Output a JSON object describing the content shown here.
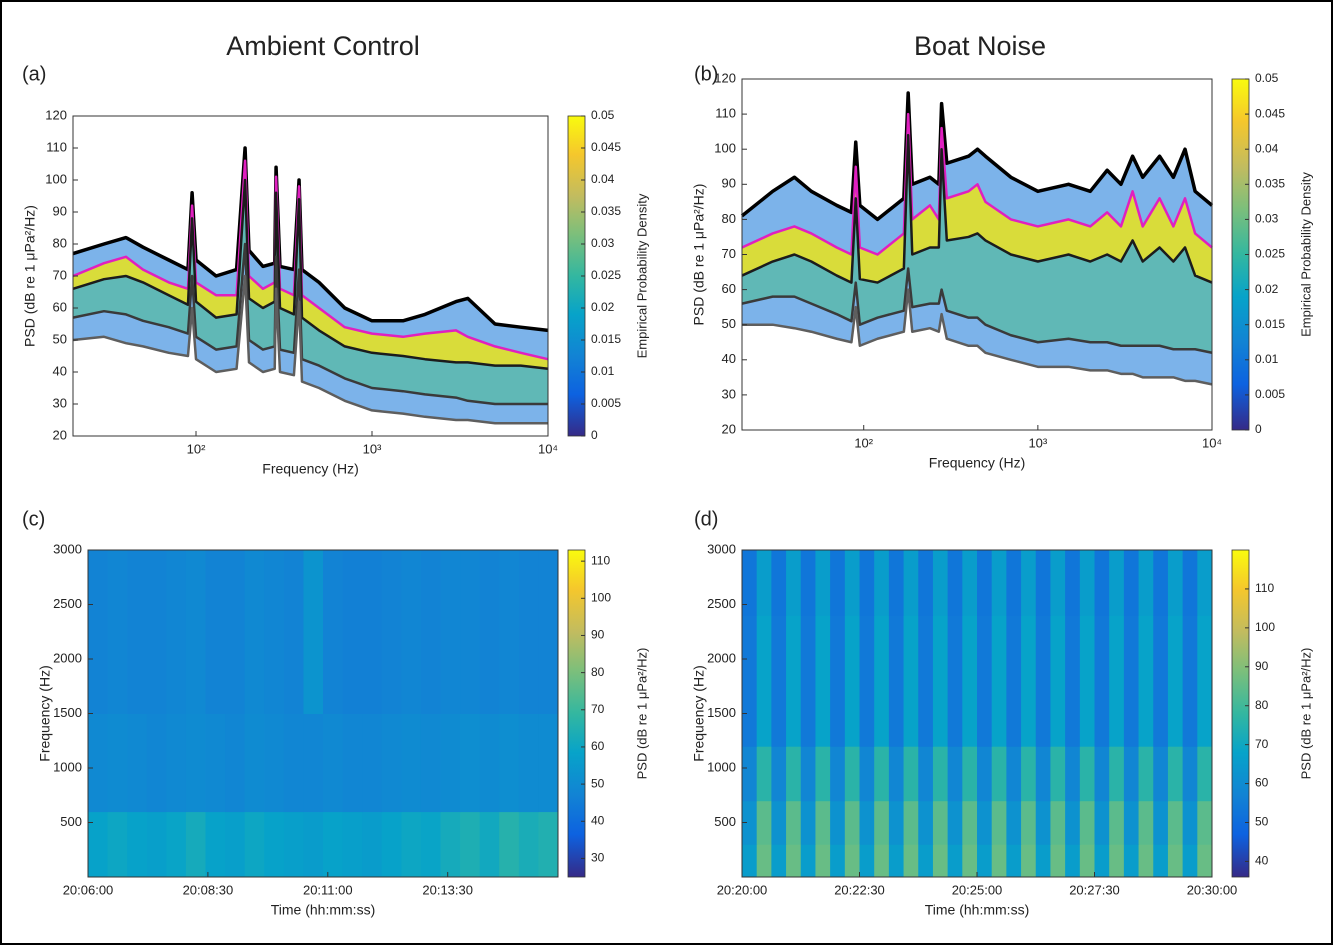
{
  "chart_data": [
    {
      "type": "line",
      "panel_label": "(a)",
      "title": "Ambient Control",
      "xlabel": "Frequency (Hz)",
      "ylabel": "PSD (dB re 1 μPa²/Hz)",
      "xscale": "log",
      "x": [
        20,
        30,
        40,
        50,
        70,
        90,
        95,
        100,
        130,
        170,
        190,
        200,
        240,
        280,
        285,
        300,
        360,
        385,
        400,
        500,
        700,
        1000,
        1500,
        2000,
        3000,
        3500,
        5000,
        7000,
        10000
      ],
      "xlim": [
        20,
        10000
      ],
      "xticks": [
        {
          "value": 100,
          "label": "10²"
        },
        {
          "value": 1000,
          "label": "10³"
        },
        {
          "value": 10000,
          "label": "10⁴"
        }
      ],
      "ylim": [
        20,
        120
      ],
      "yticks": [
        20,
        30,
        40,
        50,
        60,
        70,
        80,
        90,
        100,
        110,
        120
      ],
      "series": [
        {
          "color": "#000000",
          "values": [
            77,
            80,
            82,
            79,
            75,
            72,
            96,
            75,
            70,
            72,
            110,
            78,
            73,
            74,
            104,
            73,
            72,
            100,
            72,
            68,
            60,
            56,
            56,
            58,
            62,
            63,
            55,
            54,
            53
          ]
        },
        {
          "color": "#e020c0",
          "values": [
            70,
            74,
            76,
            72,
            68,
            66,
            92,
            68,
            64,
            64,
            106,
            70,
            66,
            68,
            101,
            66,
            64,
            98,
            64,
            60,
            54,
            52,
            51,
            52,
            53,
            51,
            48,
            46,
            44
          ]
        },
        {
          "color": "#1c1c1c",
          "values": [
            66,
            69,
            70,
            68,
            64,
            61,
            88,
            62,
            57,
            58,
            100,
            63,
            60,
            62,
            96,
            60,
            58,
            94,
            57,
            53,
            48,
            46,
            45,
            44,
            43,
            43,
            42,
            42,
            41
          ]
        },
        {
          "color": "#3a3a3a",
          "values": [
            57,
            59,
            58,
            56,
            54,
            52,
            70,
            51,
            47,
            48,
            80,
            50,
            47,
            48,
            76,
            47,
            46,
            72,
            44,
            42,
            38,
            35,
            34,
            33,
            32,
            31,
            30,
            30,
            30
          ]
        },
        {
          "color": "#5e5e5e",
          "values": [
            50,
            51,
            49,
            48,
            46,
            45,
            60,
            44,
            40,
            41,
            70,
            43,
            40,
            41,
            66,
            40,
            39,
            62,
            37,
            35,
            31,
            28,
            27,
            26,
            25,
            25,
            24,
            24,
            24
          ]
        }
      ],
      "colorbar": {
        "label": "Empirical Probability Density",
        "lim": [
          0,
          0.05
        ],
        "ticks": [
          0,
          0.005,
          0.01,
          0.015,
          0.02,
          0.025,
          0.03,
          0.035,
          0.04,
          0.045,
          0.05
        ]
      }
    },
    {
      "type": "line",
      "panel_label": "(b)",
      "title": "Boat Noise",
      "xlabel": "Frequency (Hz)",
      "ylabel": "PSD (dB re 1 μPa²/Hz)",
      "xscale": "log",
      "x": [
        20,
        30,
        40,
        50,
        70,
        85,
        90,
        95,
        120,
        170,
        180,
        190,
        240,
        270,
        280,
        300,
        400,
        450,
        500,
        700,
        1000,
        1500,
        2000,
        2500,
        3000,
        3500,
        4000,
        5000,
        6000,
        7000,
        8000,
        10000
      ],
      "xlim": [
        20,
        10000
      ],
      "xticks": [
        {
          "value": 100,
          "label": "10²"
        },
        {
          "value": 1000,
          "label": "10³"
        },
        {
          "value": 10000,
          "label": "10⁴"
        }
      ],
      "ylim": [
        20,
        120
      ],
      "yticks": [
        20,
        30,
        40,
        50,
        60,
        70,
        80,
        90,
        100,
        110,
        120
      ],
      "series": [
        {
          "color": "#000000",
          "values": [
            81,
            88,
            92,
            88,
            84,
            82,
            102,
            84,
            80,
            86,
            116,
            90,
            92,
            90,
            113,
            96,
            98,
            100,
            98,
            92,
            88,
            90,
            88,
            94,
            90,
            98,
            92,
            98,
            92,
            100,
            88,
            84
          ]
        },
        {
          "color": "#e020c0",
          "values": [
            72,
            76,
            78,
            76,
            72,
            70,
            95,
            72,
            70,
            76,
            110,
            80,
            84,
            80,
            106,
            86,
            88,
            90,
            85,
            80,
            78,
            80,
            78,
            82,
            78,
            88,
            78,
            86,
            78,
            86,
            76,
            72
          ]
        },
        {
          "color": "#1c1c1c",
          "values": [
            64,
            68,
            70,
            68,
            64,
            62,
            86,
            63,
            62,
            66,
            104,
            70,
            72,
            72,
            100,
            74,
            75,
            76,
            74,
            70,
            68,
            70,
            68,
            70,
            68,
            74,
            68,
            72,
            68,
            72,
            64,
            62
          ]
        },
        {
          "color": "#3a3a3a",
          "values": [
            56,
            58,
            58,
            56,
            53,
            51,
            62,
            50,
            52,
            54,
            66,
            55,
            56,
            56,
            60,
            54,
            52,
            52,
            50,
            47,
            45,
            46,
            45,
            45,
            44,
            44,
            44,
            44,
            43,
            43,
            43,
            42
          ]
        },
        {
          "color": "#5e5e5e",
          "values": [
            50,
            50,
            49,
            48,
            46,
            45,
            55,
            44,
            46,
            48,
            60,
            48,
            49,
            48,
            53,
            46,
            44,
            44,
            42,
            40,
            38,
            38,
            37,
            37,
            36,
            36,
            35,
            35,
            35,
            34,
            34,
            33
          ]
        }
      ],
      "colorbar": {
        "label": "Empirical Probability Density",
        "lim": [
          0,
          0.05
        ],
        "ticks": [
          0,
          0.005,
          0.01,
          0.015,
          0.02,
          0.025,
          0.03,
          0.035,
          0.04,
          0.045,
          0.05
        ]
      }
    },
    {
      "type": "heatmap",
      "panel_label": "(c)",
      "xlabel": "Time (hh:mm:ss)",
      "ylabel": "Frequency (Hz)",
      "xlim": [
        "20:06:00",
        "20:15:48"
      ],
      "xticks": [
        "20:06:00",
        "20:08:30",
        "20:11:00",
        "20:13:30"
      ],
      "ylim": [
        0,
        3000
      ],
      "yticks": [
        500,
        1000,
        1500,
        2000,
        2500,
        3000
      ],
      "y_bins": [
        0,
        600,
        1500,
        3000
      ],
      "z": [
        [
          58,
          60,
          58,
          57,
          59,
          62,
          58,
          57,
          60,
          58,
          57,
          56,
          58,
          57,
          56,
          58,
          60,
          59,
          62,
          64,
          61,
          66,
          63,
          65
        ],
        [
          49,
          50,
          49,
          48,
          49,
          50,
          49,
          48,
          50,
          49,
          48,
          48,
          49,
          48,
          48,
          49,
          50,
          49,
          50,
          51,
          50,
          51,
          50,
          50
        ],
        [
          47,
          48,
          47,
          47,
          48,
          49,
          47,
          47,
          49,
          48,
          47,
          53,
          47,
          46,
          46,
          47,
          48,
          47,
          48,
          48,
          47,
          48,
          47,
          47
        ]
      ],
      "colorbar": {
        "label": "PSD (dB re 1 μPa²/Hz)",
        "lim": [
          25,
          113
        ],
        "ticks": [
          30,
          40,
          50,
          60,
          70,
          80,
          90,
          100,
          110
        ]
      }
    },
    {
      "type": "heatmap",
      "panel_label": "(d)",
      "xlabel": "Time (hh:mm:ss)",
      "ylabel": "Frequency (Hz)",
      "xlim": [
        "20:20:00",
        "20:30:00"
      ],
      "xticks": [
        "20:20:00",
        "20:22:30",
        "20:25:00",
        "20:27:30",
        "20:30:00"
      ],
      "ylim": [
        0,
        3000
      ],
      "yticks": [
        500,
        1000,
        1500,
        2000,
        2500,
        3000
      ],
      "y_bins": [
        0,
        300,
        700,
        1200,
        2400,
        3000
      ],
      "z": [
        [
          66,
          86,
          66,
          86,
          66,
          86,
          66,
          86,
          66,
          86,
          66,
          86,
          66,
          86,
          66,
          86,
          66,
          86,
          66,
          86,
          66,
          86,
          66,
          86,
          66,
          86,
          66,
          86,
          66,
          86,
          66,
          86
        ],
        [
          62,
          84,
          62,
          84,
          62,
          84,
          62,
          84,
          62,
          84,
          62,
          84,
          62,
          84,
          62,
          84,
          62,
          84,
          62,
          84,
          62,
          84,
          62,
          84,
          62,
          84,
          62,
          84,
          62,
          84,
          62,
          84
        ],
        [
          58,
          76,
          58,
          76,
          58,
          76,
          58,
          76,
          58,
          76,
          58,
          76,
          58,
          76,
          58,
          76,
          58,
          76,
          58,
          76,
          58,
          76,
          58,
          76,
          58,
          76,
          58,
          76,
          58,
          76,
          58,
          76
        ],
        [
          54,
          68,
          54,
          68,
          54,
          68,
          54,
          68,
          54,
          68,
          54,
          68,
          54,
          68,
          54,
          68,
          54,
          68,
          54,
          68,
          54,
          68,
          54,
          68,
          54,
          68,
          54,
          68,
          54,
          68,
          54,
          68
        ],
        [
          53,
          66,
          53,
          66,
          53,
          66,
          53,
          66,
          53,
          66,
          53,
          66,
          53,
          66,
          53,
          66,
          53,
          66,
          53,
          66,
          53,
          66,
          53,
          66,
          53,
          66,
          53,
          66,
          53,
          66,
          53,
          66
        ]
      ],
      "colorbar": {
        "label": "PSD (dB re 1 μPa²/Hz)",
        "lim": [
          36,
          120
        ],
        "ticks": [
          40,
          50,
          60,
          70,
          80,
          90,
          100,
          110
        ]
      }
    }
  ]
}
